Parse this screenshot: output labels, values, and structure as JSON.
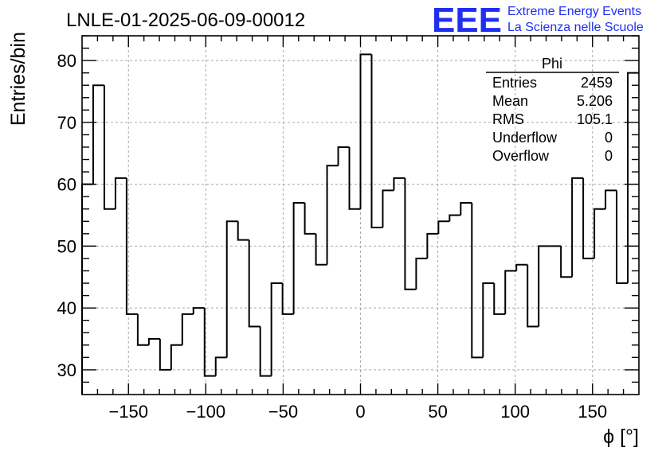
{
  "chart_data": {
    "type": "histogram",
    "title": "LNLE-01-2025-06-09-00012",
    "xlabel": "ϕ [°]",
    "ylabel": "Entries/bin",
    "xlim": [
      -180,
      180
    ],
    "ylim": [
      26,
      84
    ],
    "x_ticks": [
      -150,
      -100,
      -50,
      0,
      50,
      100,
      150
    ],
    "x_tick_labels": [
      "−150",
      "−100",
      "−50",
      "0",
      "50",
      "100",
      "150"
    ],
    "y_ticks": [
      30,
      40,
      50,
      60,
      70,
      80
    ],
    "y_tick_labels": [
      "30",
      "40",
      "50",
      "60",
      "70",
      "80"
    ],
    "grid": true,
    "bin_edges_start": -180,
    "bin_width": 7.2,
    "counts": [
      60,
      76,
      56,
      61,
      39,
      34,
      35,
      30,
      34,
      39,
      40,
      29,
      32,
      54,
      51,
      37,
      29,
      44,
      39,
      57,
      52,
      47,
      63,
      66,
      56,
      81,
      53,
      59,
      61,
      43,
      48,
      52,
      54,
      55,
      57,
      32,
      44,
      39,
      46,
      47,
      37,
      50,
      50,
      45,
      61,
      48,
      56,
      59,
      44,
      78
    ],
    "stats": {
      "name": "Phi",
      "rows": [
        {
          "label": "Entries",
          "value": "2459"
        },
        {
          "label": "Mean",
          "value": "5.206"
        },
        {
          "label": "RMS",
          "value": "105.1"
        },
        {
          "label": "Underflow",
          "value": "0"
        },
        {
          "label": "Overflow",
          "value": "0"
        }
      ]
    }
  },
  "logo": {
    "mark": "EEE",
    "line1": "Extreme Energy Events",
    "line2": "La Scienza nelle Scuole",
    "color": "#1f2ff0"
  }
}
